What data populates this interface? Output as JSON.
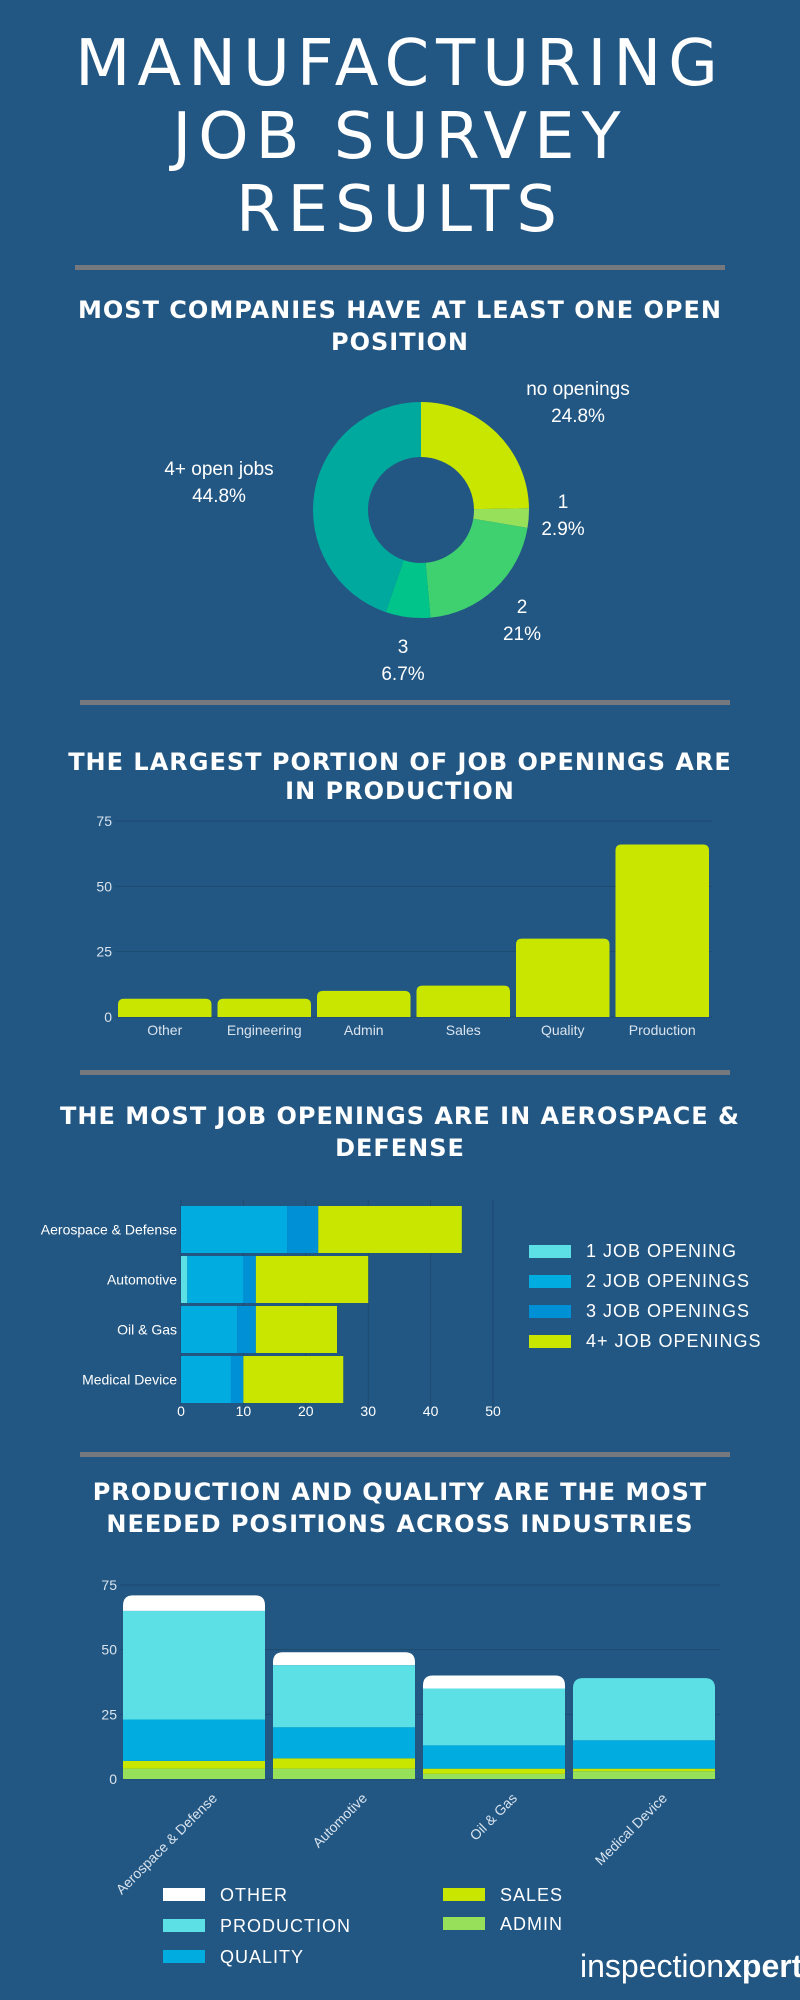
{
  "header": {
    "title_line1": "MANUFACTURING",
    "title_line2": "JOB SURVEY",
    "title_line3": "RESULTS"
  },
  "colors": {
    "background": "#235783",
    "divider": "#75787c",
    "lime": "#c8e600",
    "teal": "#00a99d",
    "green": "#3fd16f",
    "mint": "#00c48a",
    "light_green": "#96e05a",
    "cyan": "#00ace0",
    "light_cyan": "#5ce0e6",
    "blue": "#0090d6",
    "white": "#ffffff"
  },
  "sections": {
    "openings": {
      "heading": "MOST COMPANIES HAVE AT LEAST ONE OPEN POSITION"
    },
    "roles": {
      "heading": "THE LARGEST PORTION OF JOB OPENINGS ARE IN PRODUCTION"
    },
    "industries": {
      "heading": "THE MOST JOB OPENINGS ARE IN AEROSPACE & DEFENSE"
    },
    "positions": {
      "heading": "PRODUCTION AND QUALITY ARE THE MOST NEEDED POSITIONS ACROSS INDUSTRIES"
    }
  },
  "logo": {
    "part1": "inspection",
    "part2": "xpert"
  },
  "chart_data": [
    {
      "type": "pie",
      "donut": true,
      "slices": [
        {
          "label": "no openings",
          "value": 24.8,
          "value_label": "24.8%",
          "color": "#c8e600"
        },
        {
          "label": "1",
          "value": 2.9,
          "value_label": "2.9%",
          "color": "#96e05a"
        },
        {
          "label": "2",
          "value": 21,
          "value_label": "21%",
          "color": "#3fd16f"
        },
        {
          "label": "3",
          "value": 6.7,
          "value_label": "6.7%",
          "color": "#00c48a"
        },
        {
          "label": "4+ open jobs",
          "value": 44.8,
          "value_label": "44.8%",
          "color": "#00a99d"
        }
      ]
    },
    {
      "type": "bar",
      "categories": [
        "Other",
        "Engineering",
        "Admin",
        "Sales",
        "Quality",
        "Production"
      ],
      "values": [
        7,
        7,
        10,
        12,
        30,
        66
      ],
      "ylim": [
        0,
        75
      ],
      "yticks": [
        "0",
        "25",
        "50",
        "75"
      ],
      "grid": true,
      "color": "#c8e600"
    },
    {
      "type": "bar",
      "orientation": "horizontal",
      "stacked": true,
      "categories": [
        "Aerospace & Defense",
        "Automotive",
        "Oil & Gas",
        "Medical Device"
      ],
      "series": [
        {
          "name": "1 JOB OPENING",
          "values": [
            0,
            1,
            0,
            0
          ],
          "color": "#5ce0e6"
        },
        {
          "name": "2 JOB OPENINGS",
          "values": [
            17,
            9,
            9,
            8
          ],
          "color": "#00ace0"
        },
        {
          "name": "3 JOB OPENINGS",
          "values": [
            5,
            2,
            3,
            2
          ],
          "color": "#0090d6"
        },
        {
          "name": "4+ JOB OPENINGS",
          "values": [
            23,
            18,
            13,
            16
          ],
          "color": "#c8e600"
        }
      ],
      "xlim": [
        0,
        50
      ],
      "xticks": [
        "0",
        "10",
        "20",
        "30",
        "40",
        "50"
      ],
      "legend": "right"
    },
    {
      "type": "bar",
      "stacked": true,
      "categories": [
        "Aerospace & Defense",
        "Automotive",
        "Oil & Gas",
        "Medical Device"
      ],
      "series": [
        {
          "name": "ADMIN",
          "values": [
            4,
            4,
            2,
            3
          ],
          "color": "#96e05a"
        },
        {
          "name": "SALES",
          "values": [
            3,
            4,
            2,
            1
          ],
          "color": "#c8e600"
        },
        {
          "name": "QUALITY",
          "values": [
            16,
            12,
            9,
            11
          ],
          "color": "#00ace0"
        },
        {
          "name": "PRODUCTION",
          "values": [
            42,
            24,
            22,
            24
          ],
          "color": "#5ce0e6"
        },
        {
          "name": "OTHER",
          "values": [
            6,
            5,
            5,
            0
          ],
          "color": "#ffffff"
        }
      ],
      "ylim": [
        0,
        75
      ],
      "yticks": [
        "0",
        "25",
        "50",
        "75"
      ],
      "grid": true,
      "legend_order": [
        "OTHER",
        "PRODUCTION",
        "QUALITY",
        "SALES",
        "ADMIN"
      ],
      "legend": "bottom"
    }
  ]
}
